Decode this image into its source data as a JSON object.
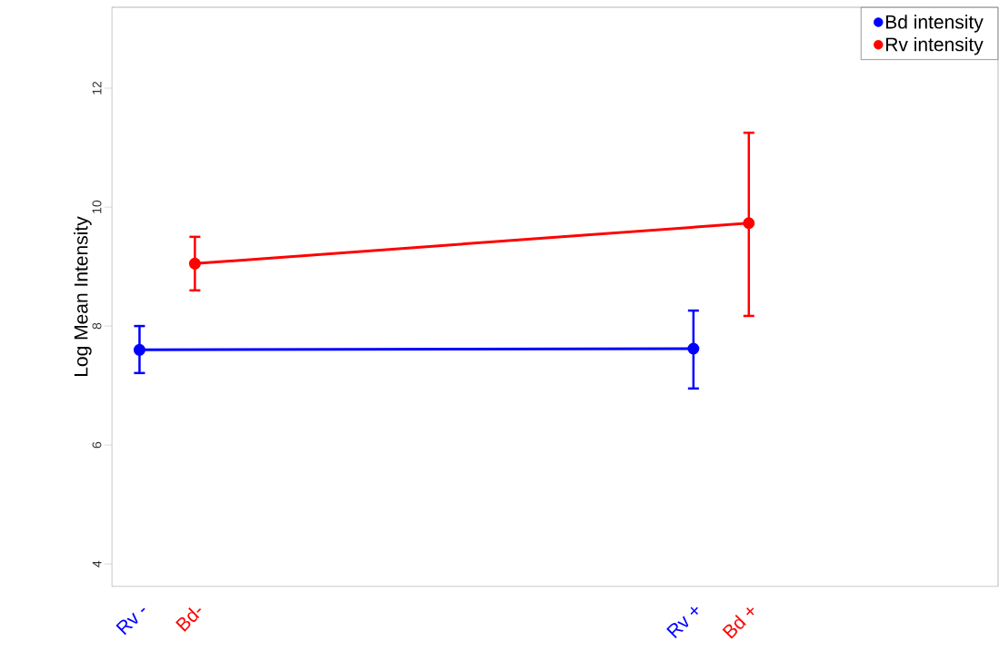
{
  "chart_data": {
    "type": "line",
    "ylabel": "Log Mean Intensity",
    "categories": [
      "Rv -",
      "Bd-",
      null,
      null,
      null,
      null,
      null,
      null,
      null,
      null,
      "Rv +",
      "Bd +",
      null,
      null,
      null,
      null
    ],
    "ylim": [
      3.62,
      13.36
    ],
    "yticks": [
      4,
      6,
      8,
      10,
      12
    ],
    "series": [
      {
        "name": "Bd intensity",
        "color": "#0000ff",
        "x": [
          "Rv -",
          "Rv +"
        ],
        "values": [
          7.6,
          7.62
        ],
        "errors": [
          [
            7.21,
            8.0
          ],
          [
            6.95,
            8.26
          ]
        ]
      },
      {
        "name": "Rv intensity",
        "color": "#ff0000",
        "x": [
          "Bd-",
          "Bd +"
        ],
        "values": [
          9.05,
          9.73
        ],
        "errors": [
          [
            8.6,
            9.5
          ],
          [
            8.17,
            11.25
          ]
        ]
      }
    ],
    "legend": "top right",
    "marker": "circle",
    "line_style": "solid"
  }
}
